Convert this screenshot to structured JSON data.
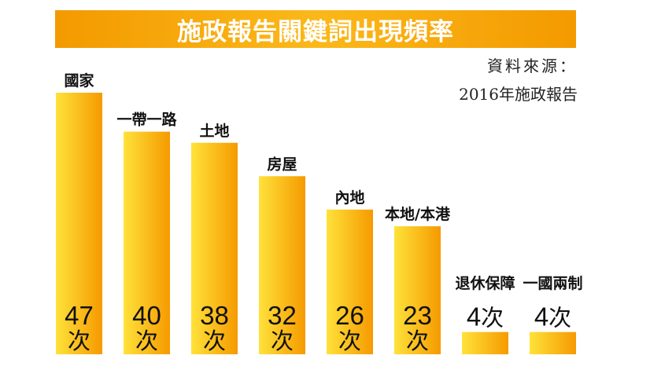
{
  "title": "施政報告關鍵詞出現頻率",
  "source": {
    "label": "資料來源：",
    "value": "2016年施政報告"
  },
  "unit": "次",
  "colors": {
    "bar_light": "#ffe23a",
    "bar_dark": "#f59a00",
    "title_bg": "#f7a400"
  },
  "chart_data": {
    "type": "bar",
    "title": "施政報告關鍵詞出現頻率",
    "categories": [
      "國家",
      "一帶一路",
      "土地",
      "房屋",
      "內地",
      "本地/本港",
      "退休保障",
      "一國兩制"
    ],
    "values": [
      47,
      40,
      38,
      32,
      26,
      23,
      4,
      4
    ],
    "value_unit": "次",
    "xlabel": "",
    "ylabel": "",
    "ylim": [
      0,
      47
    ],
    "grid": false,
    "legend": "none"
  }
}
